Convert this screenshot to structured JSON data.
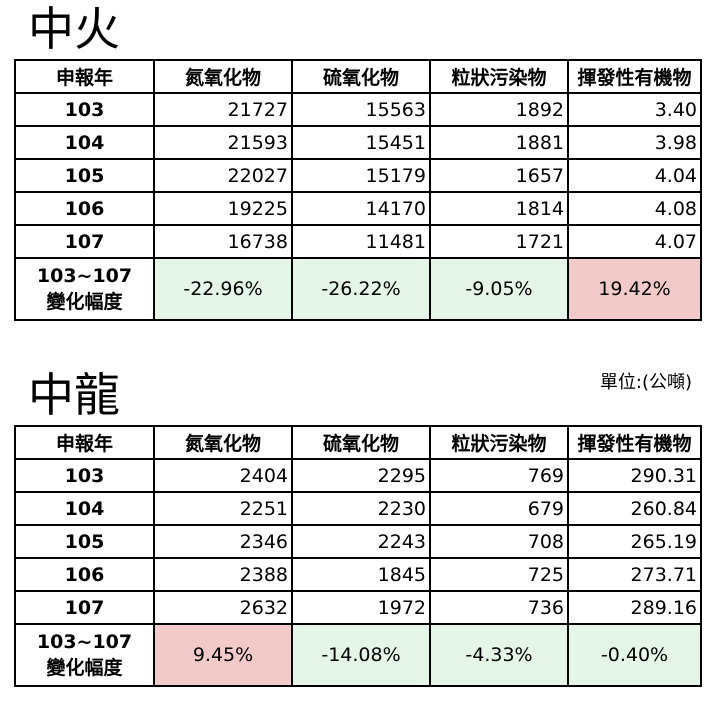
{
  "colors": {
    "decrease_bg": "#e5f5e7",
    "increase_bg": "#f3caca"
  },
  "unit_label": "單位:(公噸)",
  "tables": [
    {
      "title": "中火",
      "headers": [
        "申報年",
        "氮氧化物",
        "硫氧化物",
        "粒狀污染物",
        "揮發性有機物"
      ],
      "rows": [
        [
          "103",
          "21727",
          "15563",
          "1892",
          "3.40"
        ],
        [
          "104",
          "21593",
          "15451",
          "1881",
          "3.98"
        ],
        [
          "105",
          "22027",
          "15179",
          "1657",
          "4.04"
        ],
        [
          "106",
          "19225",
          "14170",
          "1814",
          "4.08"
        ],
        [
          "107",
          "16738",
          "11481",
          "1721",
          "4.07"
        ]
      ],
      "change_label_line1": "103~107",
      "change_label_line2": "變化幅度",
      "change_values": [
        "-22.96%",
        "-26.22%",
        "-9.05%",
        "19.42%"
      ]
    },
    {
      "title": "中龍",
      "headers": [
        "申報年",
        "氮氧化物",
        "硫氧化物",
        "粒狀污染物",
        "揮發性有機物"
      ],
      "rows": [
        [
          "103",
          "2404",
          "2295",
          "769",
          "290.31"
        ],
        [
          "104",
          "2251",
          "2230",
          "679",
          "260.84"
        ],
        [
          "105",
          "2346",
          "2243",
          "708",
          "265.19"
        ],
        [
          "106",
          "2388",
          "1845",
          "725",
          "273.71"
        ],
        [
          "107",
          "2632",
          "1972",
          "736",
          "289.16"
        ]
      ],
      "change_label_line1": "103~107",
      "change_label_line2": "變化幅度",
      "change_values": [
        "9.45%",
        "-14.08%",
        "-4.33%",
        "-0.40%"
      ]
    }
  ]
}
